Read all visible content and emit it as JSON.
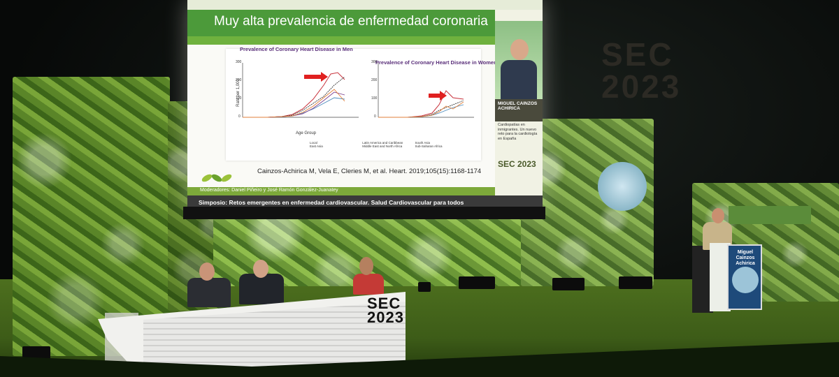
{
  "screen": {
    "title": "Muy alta prevalencia de enfermedad coronaria",
    "chart_men_title": "Prevalence of Coronary Heart Disease in Men",
    "chart_women_title": "Prevalence of Coronary Heart Disease in Women",
    "y_axis_label": "Rate per 1,000",
    "x_axis_label": "Age Group",
    "y_ticks_men": [
      "300",
      "200",
      "100",
      "0"
    ],
    "y_ticks_women": [
      "300",
      "200",
      "100",
      "0"
    ],
    "legend": [
      "Local",
      "Latin America and Caribbean",
      "South Asia",
      "East Asia",
      "Middle East and North Africa",
      "Sub-Saharan Africa"
    ],
    "citation": "Cainzos-Achirica M, Vela E, Cleries M, et al. Heart. 2019;105(15):1168-1174",
    "moderators": "Moderadores: Daniel Piñeiro y José Ramón González-Juanatey",
    "symposium": "Simposio: Retos emergentes en enfermedad cardiovascular. Salud Cardiovascular para todos"
  },
  "speaker_panel": {
    "name": "MIGUEL CAINZOS ACHIRICA",
    "talk": "Cardiopatías en inmigrantes. Un nuevo reto para la cardiología en España",
    "logo": "SEC 2023"
  },
  "venue": {
    "bg_logo_line1": "SEC",
    "bg_logo_line2": "2023",
    "table_logo_line1": "SEC",
    "table_logo_line2": "2023",
    "lectern_name": "Miguel Cainzos Achirica"
  },
  "colors": {
    "title_green": "#4c9a3a",
    "wall_green": "#6a9a30",
    "arrow_red": "#e02020"
  }
}
